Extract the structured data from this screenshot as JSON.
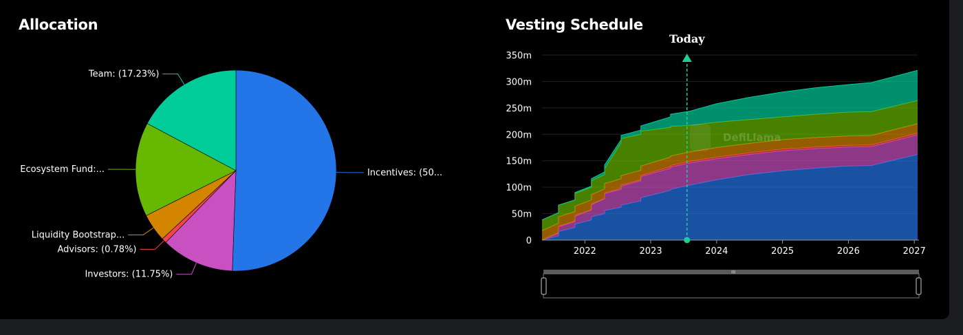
{
  "allocation": {
    "title": "Allocation"
  },
  "vesting": {
    "title": "Vesting Schedule",
    "today_label": "Today",
    "watermark": "DefiLlama"
  },
  "chart_data": [
    {
      "type": "pie",
      "title": "Allocation",
      "slices": [
        {
          "label": "Incentives: (50...",
          "value": 50.57,
          "color": "#2475e8"
        },
        {
          "label": "Investors: (11.75%)",
          "value": 11.75,
          "color": "#c850c0"
        },
        {
          "label": "Advisors: (0.78%)",
          "value": 0.78,
          "color": "#f0454a"
        },
        {
          "label": "Liquidity Bootstrap...",
          "value": 4.5,
          "color": "#d38500"
        },
        {
          "label": "Ecosystem Fund:...",
          "value": 15.17,
          "color": "#66b800"
        },
        {
          "label": "Team: (17.23%)",
          "value": 17.23,
          "color": "#00cc9a"
        }
      ]
    },
    {
      "type": "area",
      "title": "Vesting Schedule",
      "stacked": true,
      "x_ticks": [
        "2022",
        "2023",
        "2024",
        "2025",
        "2026",
        "2027"
      ],
      "y_ticks": [
        "0",
        "50m",
        "100m",
        "150m",
        "200m",
        "250m",
        "300m",
        "350m"
      ],
      "xlim": [
        2021.35,
        2027.05
      ],
      "ylim": [
        0,
        350
      ],
      "today": 2023.55,
      "x": [
        2021.35,
        2021.6,
        2021.6,
        2021.85,
        2021.85,
        2022.1,
        2022.1,
        2022.3,
        2022.3,
        2022.55,
        2022.55,
        2022.85,
        2022.85,
        2023.3,
        2023.3,
        2023.6,
        2024.0,
        2024.5,
        2025.0,
        2025.5,
        2026.0,
        2026.35,
        2027.05
      ],
      "series": [
        {
          "color": "#2475e8",
          "values": [
            0,
            8,
            16,
            24,
            30,
            38,
            44,
            50,
            56,
            62,
            66,
            74,
            80,
            94,
            96,
            104,
            114,
            124,
            131,
            136,
            140,
            141,
            162
          ]
        },
        {
          "color": "#c850c0",
          "values": [
            0,
            5,
            9,
            11,
            15,
            19,
            23,
            28,
            32,
            34,
            36,
            38,
            40,
            42,
            42,
            42,
            40,
            38,
            38,
            37,
            36,
            36,
            37
          ]
        },
        {
          "color": "#f0454a",
          "values": [
            0,
            1,
            1,
            1,
            1,
            1,
            1,
            1,
            1,
            2,
            2,
            2,
            2,
            3,
            3,
            3,
            3,
            3,
            3,
            3,
            3,
            3,
            3
          ]
        },
        {
          "color": "#d38500",
          "values": [
            18,
            18,
            18,
            18,
            18,
            18,
            18,
            18,
            18,
            18,
            18,
            18,
            18,
            18,
            18,
            18,
            18,
            18,
            18,
            18,
            18,
            18,
            18
          ]
        },
        {
          "color": "#66b800",
          "values": [
            20,
            20,
            22,
            22,
            24,
            24,
            26,
            27,
            28,
            68,
            70,
            68,
            66,
            56,
            56,
            50,
            48,
            45,
            43,
            44,
            45,
            45,
            44
          ]
        },
        {
          "color": "#00cc9a",
          "values": [
            0,
            0,
            0,
            0,
            2,
            2,
            4,
            5,
            7,
            6,
            6,
            8,
            10,
            20,
            23,
            27,
            35,
            42,
            47,
            50,
            52,
            55,
            57
          ]
        }
      ]
    }
  ]
}
